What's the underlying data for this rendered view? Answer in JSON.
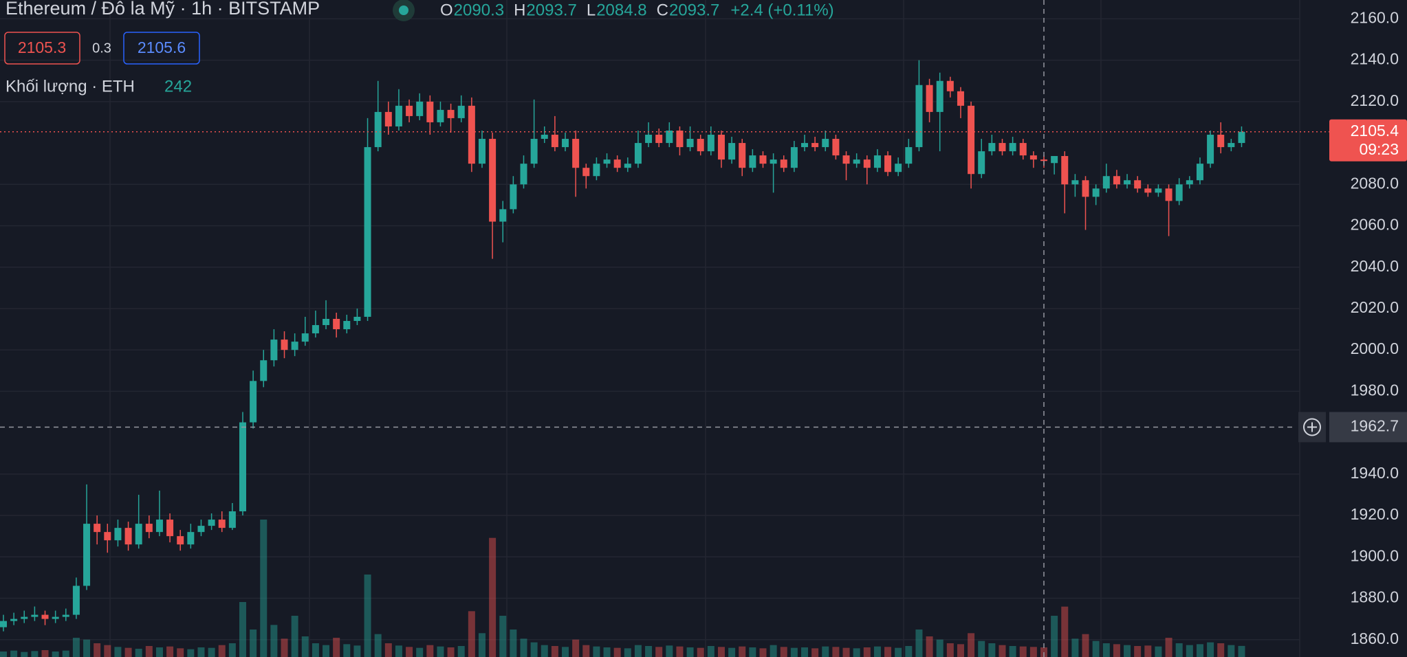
{
  "chart_data": {
    "type": "candlestick",
    "title": "Ethereum / Đô la Mỹ · 1h · BITSTAMP",
    "ohlc_keys": [
      "O",
      "H",
      "L",
      "C"
    ],
    "hover_index": 101,
    "change": "+2.4 (+0.11%)",
    "bid": 2105.3,
    "spread": 0.3,
    "ask": 2105.6,
    "volume_label": "Khối lượng · ETH",
    "last_time": "09:23",
    "crosshair_price": 1962.7,
    "colors": {
      "up": "#26a69a",
      "down": "#ef5350"
    },
    "grid": true,
    "ylim": [
      1851.6,
      2169.1
    ],
    "yticks": [
      {
        "value": 1860,
        "label": "1860.0"
      },
      {
        "value": 1880,
        "label": "1880.0"
      },
      {
        "value": 1900,
        "label": "1900.0"
      },
      {
        "value": 1920,
        "label": "1920.0"
      },
      {
        "value": 1940,
        "label": "1940.0"
      },
      {
        "value": 1980,
        "label": "1980.0"
      },
      {
        "value": 2000,
        "label": "2000.0"
      },
      {
        "value": 2020,
        "label": "2020.0"
      },
      {
        "value": 2040,
        "label": "2040.0"
      },
      {
        "value": 2060,
        "label": "2060.0"
      },
      {
        "value": 2080,
        "label": "2080.0"
      },
      {
        "value": 2120,
        "label": "2120.0"
      },
      {
        "value": 2140,
        "label": "2140.0"
      },
      {
        "value": 2160,
        "label": "2160.0"
      }
    ],
    "ohlc": [
      [
        1866,
        1872,
        1864,
        1869
      ],
      [
        1869,
        1873,
        1867,
        1870
      ],
      [
        1870,
        1874,
        1868,
        1871
      ],
      [
        1871,
        1876,
        1869,
        1872
      ],
      [
        1872,
        1874,
        1867,
        1870
      ],
      [
        1870,
        1874,
        1868,
        1871
      ],
      [
        1871,
        1875,
        1869,
        1872
      ],
      [
        1872,
        1890,
        1870,
        1886
      ],
      [
        1886,
        1935,
        1884,
        1916
      ],
      [
        1916,
        1920,
        1906,
        1912
      ],
      [
        1912,
        1916,
        1902,
        1908
      ],
      [
        1908,
        1918,
        1905,
        1914
      ],
      [
        1914,
        1917,
        1903,
        1906
      ],
      [
        1906,
        1930,
        1904,
        1916
      ],
      [
        1916,
        1920,
        1909,
        1912
      ],
      [
        1912,
        1932,
        1910,
        1918
      ],
      [
        1918,
        1921,
        1907,
        1910
      ],
      [
        1910,
        1913,
        1903,
        1906
      ],
      [
        1906,
        1916,
        1904,
        1912
      ],
      [
        1912,
        1918,
        1910,
        1915
      ],
      [
        1915,
        1921,
        1913,
        1918
      ],
      [
        1918,
        1922,
        1912,
        1914
      ],
      [
        1914,
        1926,
        1913,
        1922
      ],
      [
        1922,
        1970,
        1920,
        1965
      ],
      [
        1965,
        1990,
        1962,
        1985
      ],
      [
        1985,
        2000,
        1982,
        1995
      ],
      [
        1995,
        2010,
        1992,
        2005
      ],
      [
        2005,
        2009,
        1996,
        2000
      ],
      [
        2000,
        2008,
        1997,
        2004
      ],
      [
        2004,
        2016,
        2002,
        2008
      ],
      [
        2008,
        2019,
        2006,
        2012
      ],
      [
        2012,
        2024,
        2010,
        2015
      ],
      [
        2015,
        2018,
        2006,
        2010
      ],
      [
        2010,
        2017,
        2008,
        2014
      ],
      [
        2014,
        2020,
        2012,
        2016
      ],
      [
        2016,
        2112,
        2014,
        2098
      ],
      [
        2098,
        2130,
        2096,
        2115
      ],
      [
        2115,
        2120,
        2104,
        2108
      ],
      [
        2108,
        2126,
        2106,
        2118
      ],
      [
        2118,
        2121,
        2110,
        2113
      ],
      [
        2113,
        2124,
        2111,
        2120
      ],
      [
        2120,
        2123,
        2104,
        2110
      ],
      [
        2110,
        2120,
        2108,
        2116
      ],
      [
        2116,
        2119,
        2105,
        2112
      ],
      [
        2112,
        2123,
        2110,
        2118
      ],
      [
        2118,
        2122,
        2086,
        2090
      ],
      [
        2090,
        2106,
        2088,
        2102
      ],
      [
        2102,
        2105,
        2044,
        2062
      ],
      [
        2062,
        2072,
        2052,
        2068
      ],
      [
        2068,
        2084,
        2066,
        2080
      ],
      [
        2080,
        2094,
        2078,
        2090
      ],
      [
        2090,
        2121,
        2088,
        2102
      ],
      [
        2102,
        2108,
        2100,
        2104
      ],
      [
        2104,
        2113,
        2096,
        2098
      ],
      [
        2098,
        2105,
        2096,
        2102
      ],
      [
        2102,
        2106,
        2074,
        2088
      ],
      [
        2088,
        2090,
        2078,
        2084
      ],
      [
        2084,
        2093,
        2082,
        2090
      ],
      [
        2090,
        2095,
        2088,
        2092
      ],
      [
        2092,
        2094,
        2086,
        2088
      ],
      [
        2088,
        2093,
        2086,
        2090
      ],
      [
        2090,
        2106,
        2088,
        2100
      ],
      [
        2100,
        2110,
        2098,
        2104
      ],
      [
        2104,
        2107,
        2098,
        2100
      ],
      [
        2100,
        2110,
        2098,
        2106
      ],
      [
        2106,
        2108,
        2094,
        2098
      ],
      [
        2098,
        2108,
        2096,
        2102
      ],
      [
        2102,
        2104,
        2094,
        2096
      ],
      [
        2096,
        2108,
        2094,
        2104
      ],
      [
        2104,
        2106,
        2088,
        2092
      ],
      [
        2092,
        2103,
        2090,
        2100
      ],
      [
        2100,
        2102,
        2084,
        2088
      ],
      [
        2088,
        2097,
        2086,
        2094
      ],
      [
        2094,
        2096,
        2088,
        2090
      ],
      [
        2090,
        2095,
        2076,
        2092
      ],
      [
        2092,
        2094,
        2086,
        2088
      ],
      [
        2088,
        2101,
        2086,
        2098
      ],
      [
        2098,
        2104,
        2096,
        2100
      ],
      [
        2100,
        2103,
        2096,
        2098
      ],
      [
        2098,
        2106,
        2096,
        2102
      ],
      [
        2102,
        2104,
        2092,
        2094
      ],
      [
        2094,
        2096,
        2082,
        2090
      ],
      [
        2090,
        2095,
        2088,
        2092
      ],
      [
        2092,
        2094,
        2080,
        2088
      ],
      [
        2088,
        2097,
        2086,
        2094
      ],
      [
        2094,
        2096,
        2084,
        2086
      ],
      [
        2086,
        2093,
        2084,
        2090
      ],
      [
        2090,
        2102,
        2088,
        2098
      ],
      [
        2098,
        2140,
        2096,
        2128
      ],
      [
        2128,
        2131,
        2110,
        2115
      ],
      [
        2115,
        2134,
        2096,
        2130
      ],
      [
        2130,
        2132,
        2122,
        2125
      ],
      [
        2125,
        2127,
        2112,
        2118
      ],
      [
        2118,
        2120,
        2078,
        2085
      ],
      [
        2085,
        2102,
        2083,
        2096
      ],
      [
        2096,
        2104,
        2094,
        2100
      ],
      [
        2100,
        2102,
        2094,
        2096
      ],
      [
        2096,
        2103,
        2094,
        2100
      ],
      [
        2100,
        2102,
        2092,
        2094
      ],
      [
        2094,
        2096,
        2088,
        2092
      ],
      [
        2092,
        2094,
        2088,
        2091.3
      ],
      [
        2090.3,
        2093.7,
        2084.8,
        2093.7
      ],
      [
        2093.7,
        2096,
        2066,
        2080
      ],
      [
        2080,
        2085,
        2074,
        2082
      ],
      [
        2082,
        2084,
        2058,
        2074
      ],
      [
        2074,
        2080,
        2070,
        2078
      ],
      [
        2078,
        2090,
        2076,
        2084
      ],
      [
        2084,
        2087,
        2078,
        2080
      ],
      [
        2080,
        2085,
        2078,
        2082
      ],
      [
        2082,
        2084,
        2076,
        2078
      ],
      [
        2078,
        2080,
        2074,
        2076
      ],
      [
        2076,
        2080,
        2074,
        2078
      ],
      [
        2078,
        2080,
        2055,
        2072
      ],
      [
        2072,
        2083,
        2070,
        2080
      ],
      [
        2080,
        2084,
        2078,
        2082
      ],
      [
        2082,
        2093,
        2080,
        2090
      ],
      [
        2090,
        2106,
        2088,
        2104
      ],
      [
        2104,
        2110,
        2095,
        2098
      ],
      [
        2098,
        2102,
        2096,
        2100
      ],
      [
        2100,
        2108,
        2098,
        2105.4
      ]
    ],
    "volume": [
      120,
      140,
      110,
      130,
      150,
      120,
      140,
      420,
      380,
      300,
      260,
      220,
      200,
      180,
      240,
      210,
      230,
      190,
      170,
      210,
      200,
      260,
      300,
      1200,
      600,
      3000,
      700,
      400,
      900,
      450,
      300,
      260,
      420,
      280,
      250,
      1800,
      500,
      300,
      250,
      220,
      200,
      260,
      230,
      210,
      240,
      1000,
      520,
      2600,
      900,
      600,
      400,
      320,
      260,
      240,
      220,
      380,
      260,
      230,
      210,
      200,
      190,
      260,
      240,
      220,
      250,
      230,
      210,
      200,
      240,
      220,
      200,
      230,
      210,
      190,
      260,
      220,
      200,
      210,
      190,
      230,
      220,
      200,
      190,
      210,
      230,
      220,
      200,
      240,
      600,
      450,
      380,
      300,
      280,
      520,
      350,
      300,
      260,
      240,
      230,
      220,
      210,
      900,
      1100,
      400,
      500,
      350,
      300,
      280,
      260,
      240,
      250,
      230,
      420,
      300,
      260,
      280,
      320,
      300,
      260,
      242
    ]
  }
}
